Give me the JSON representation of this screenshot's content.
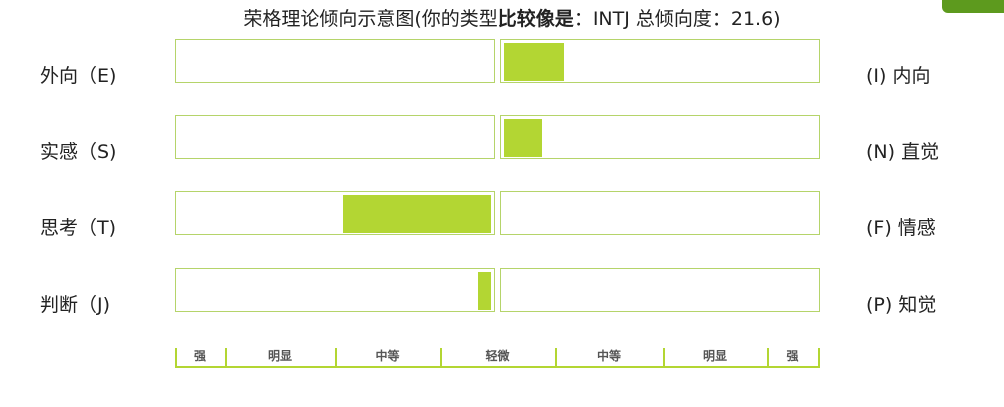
{
  "chart_data": {
    "type": "bar",
    "title_prefix": "荣格理论倾向示意图(你的类型",
    "title_bold": "比较像是",
    "title_suffix": "：INTJ 总倾向度：21.6)",
    "dimensions": [
      {
        "left_label": "外向（E)",
        "right_label": "(I) 内向",
        "side": "right",
        "strength": 0.19
      },
      {
        "left_label": "实感（S)",
        "right_label": "(N) 直觉",
        "side": "right",
        "strength": 0.12
      },
      {
        "left_label": "思考（T)",
        "right_label": "(F) 情感",
        "side": "left",
        "strength": 0.47
      },
      {
        "left_label": "判断（J)",
        "right_label": "(P) 知觉",
        "side": "left",
        "strength": 0.04
      }
    ],
    "scale_labels": [
      "强",
      "明显",
      "中等",
      "轻微",
      "中等",
      "明显",
      "强"
    ],
    "bar_color": "#b3d633",
    "border_color": "#b5d46a"
  }
}
